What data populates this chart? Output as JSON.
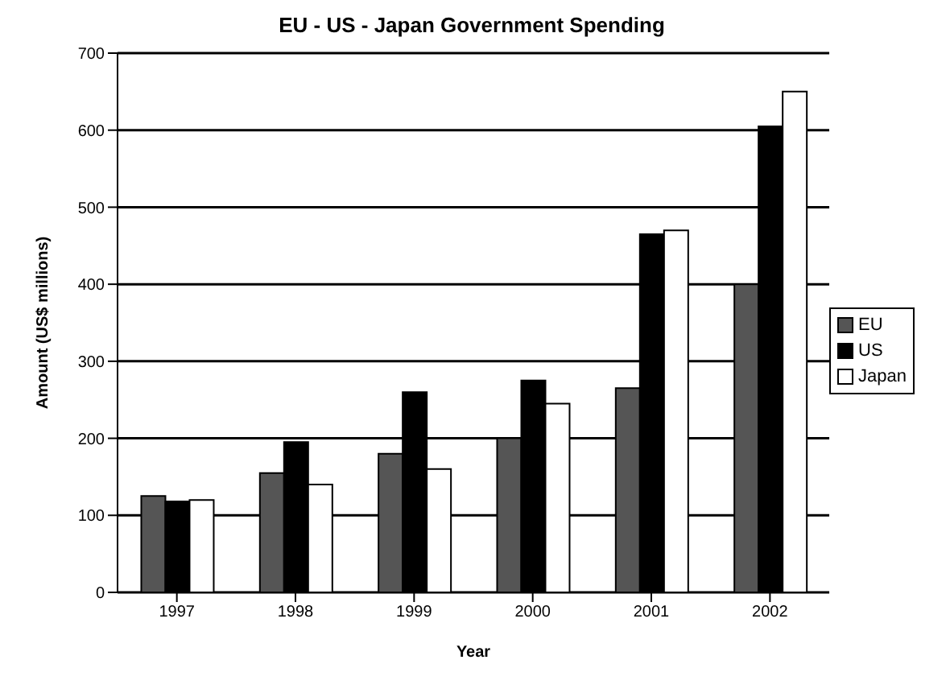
{
  "chart_data": {
    "type": "bar",
    "title": "EU - US - Japan Government Spending",
    "xlabel": "Year",
    "ylabel": "Amount (US$ millions)",
    "categories": [
      "1997",
      "1998",
      "1999",
      "2000",
      "2001",
      "2002"
    ],
    "series": [
      {
        "name": "EU",
        "color": "#555555",
        "values": [
          125,
          155,
          180,
          200,
          265,
          400
        ]
      },
      {
        "name": "US",
        "color": "#000000",
        "values": [
          118,
          195,
          260,
          275,
          465,
          605
        ]
      },
      {
        "name": "Japan",
        "color": "#ffffff",
        "values": [
          120,
          140,
          160,
          245,
          470,
          650
        ]
      }
    ],
    "ylim": [
      0,
      700
    ],
    "yticks": [
      0,
      100,
      200,
      300,
      400,
      500,
      600,
      700
    ],
    "grid": "y",
    "legend": "right"
  }
}
